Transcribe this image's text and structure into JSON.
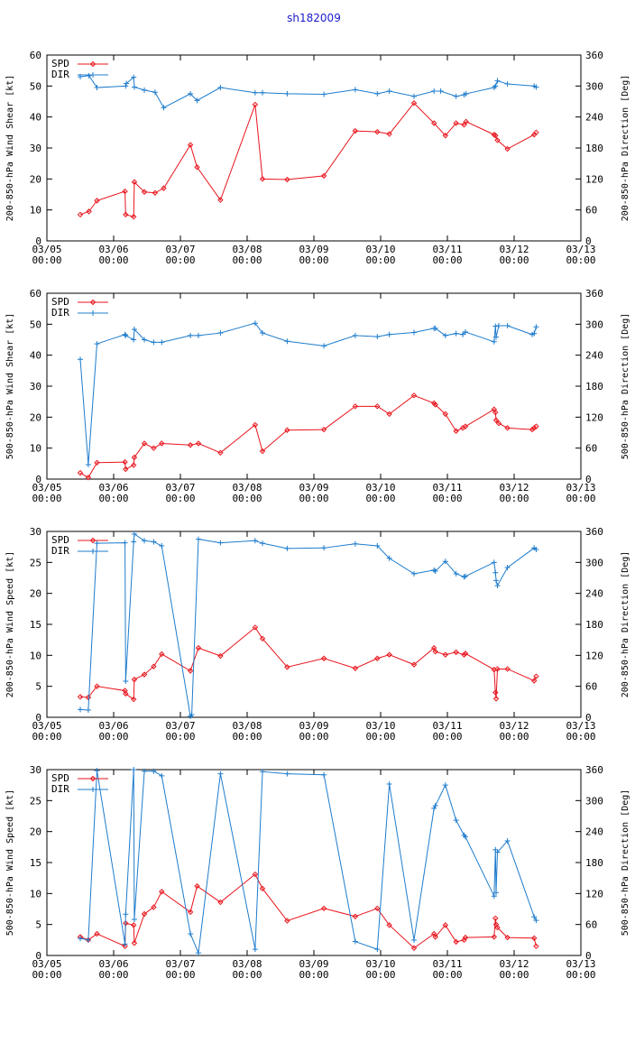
{
  "title": "sh182009",
  "colors": {
    "spd": "#e8141c",
    "dir": "#1e7ccc",
    "title": "#1a1acc",
    "axis": "#000000"
  },
  "x_ticks": [
    {
      "d": "03/05",
      "t": "00:00"
    },
    {
      "d": "03/06",
      "t": "00:00"
    },
    {
      "d": "03/07",
      "t": "00:00"
    },
    {
      "d": "03/08",
      "t": "00:00"
    },
    {
      "d": "03/09",
      "t": "00:00"
    },
    {
      "d": "03/10",
      "t": "00:00"
    },
    {
      "d": "03/11",
      "t": "00:00"
    },
    {
      "d": "03/12",
      "t": "00:00"
    },
    {
      "d": "03/13",
      "t": "00:00"
    }
  ],
  "chart_data": [
    {
      "type": "line",
      "ylabel": "200-850-hPa Wind Shear [kt]",
      "y2label": "200-850-hPa Direction [Deg]",
      "ylim": [
        0,
        60
      ],
      "yticks": [
        0,
        10,
        20,
        30,
        40,
        50,
        60
      ],
      "y2lim": [
        0,
        360
      ],
      "y2ticks": [
        0,
        60,
        120,
        180,
        240,
        300,
        360
      ],
      "xlim": [
        0,
        8
      ],
      "legend": [
        "SPD",
        "DIR"
      ],
      "series": [
        {
          "name": "SPD",
          "axis": "left",
          "x": [
            0.5,
            0.63,
            0.75,
            1.17,
            1.18,
            1.3,
            1.31,
            1.46,
            1.62,
            1.75,
            2.15,
            2.25,
            2.6,
            3.12,
            3.23,
            3.6,
            4.15,
            4.62,
            4.95,
            5.13,
            5.5,
            5.8,
            5.97,
            6.13,
            6.25,
            6.28,
            6.7,
            6.72,
            6.75,
            6.9,
            7.3,
            7.33
          ],
          "y": [
            8.5,
            9.5,
            13,
            16,
            8.5,
            7.8,
            19,
            15.8,
            15.5,
            17,
            31,
            23.8,
            13.2,
            44,
            20,
            19.8,
            21,
            35.5,
            35.2,
            34.5,
            44.5,
            38,
            34,
            38,
            37.5,
            38.5,
            34.3,
            34,
            32.5,
            29.7,
            34.3,
            35
          ]
        },
        {
          "name": "DIR",
          "axis": "right",
          "x": [
            0.5,
            0.63,
            0.75,
            1.18,
            1.19,
            1.3,
            1.31,
            1.46,
            1.62,
            1.75,
            2.15,
            2.25,
            2.6,
            3.12,
            3.23,
            3.6,
            4.15,
            4.62,
            4.95,
            5.13,
            5.5,
            5.8,
            5.9,
            6.13,
            6.25,
            6.28,
            6.7,
            6.72,
            6.75,
            6.9,
            7.3,
            7.33
          ],
          "y": [
            318,
            320,
            297,
            300,
            305,
            317,
            298,
            292,
            288,
            258,
            285,
            272,
            297,
            287,
            287,
            285,
            284,
            293,
            285,
            290,
            280,
            290,
            290,
            280,
            283,
            285,
            297,
            300,
            310,
            304,
            300,
            298
          ]
        }
      ]
    },
    {
      "type": "line",
      "ylabel": "500-850-hPa Wind Shear [kt]",
      "y2label": "500-850-hPa Direction [Deg]",
      "ylim": [
        0,
        60
      ],
      "yticks": [
        0,
        10,
        20,
        30,
        40,
        50,
        60
      ],
      "y2lim": [
        0,
        360
      ],
      "y2ticks": [
        0,
        60,
        120,
        180,
        240,
        300,
        360
      ],
      "xlim": [
        0,
        8
      ],
      "legend": [
        "SPD",
        "DIR"
      ],
      "series": [
        {
          "name": "SPD",
          "axis": "left",
          "x": [
            0.5,
            0.62,
            0.75,
            1.17,
            1.18,
            1.3,
            1.31,
            1.46,
            1.6,
            1.72,
            2.15,
            2.27,
            2.6,
            3.12,
            3.23,
            3.6,
            4.15,
            4.62,
            4.95,
            5.13,
            5.5,
            5.8,
            5.82,
            5.97,
            6.13,
            6.23,
            6.27,
            6.7,
            6.72,
            6.73,
            6.77,
            6.9,
            7.27,
            7.3,
            7.33
          ],
          "y": [
            2,
            0.5,
            5.3,
            5.5,
            3.2,
            4.5,
            7,
            11.5,
            10,
            11.5,
            11,
            11.5,
            8.5,
            17.5,
            9,
            15.8,
            16,
            23.5,
            23.5,
            21,
            27,
            24.5,
            24,
            21,
            15.5,
            16.5,
            17,
            22.5,
            21.5,
            19,
            18,
            16.5,
            16,
            16.5,
            17
          ]
        },
        {
          "name": "DIR",
          "axis": "right",
          "x": [
            0.5,
            0.62,
            0.75,
            1.17,
            1.18,
            1.3,
            1.31,
            1.46,
            1.6,
            1.72,
            2.15,
            2.27,
            2.6,
            3.12,
            3.23,
            3.6,
            4.15,
            4.62,
            4.95,
            5.13,
            5.5,
            5.8,
            5.82,
            5.97,
            6.13,
            6.23,
            6.27,
            6.7,
            6.72,
            6.73,
            6.77,
            6.9,
            7.27,
            7.3,
            7.33
          ],
          "y": [
            232,
            28,
            262,
            280,
            278,
            270,
            290,
            270,
            265,
            265,
            278,
            278,
            283,
            302,
            283,
            267,
            258,
            278,
            276,
            280,
            284,
            292,
            292,
            278,
            282,
            280,
            285,
            266,
            296,
            275,
            297,
            297,
            280,
            282,
            295
          ]
        }
      ]
    },
    {
      "type": "line",
      "ylabel": "200-850-hPa Wind Speed [kt]",
      "y2label": "200-850-hPa Direction [Deg]",
      "ylim": [
        0,
        30
      ],
      "yticks": [
        0,
        5,
        10,
        15,
        20,
        25,
        30
      ],
      "y2lim": [
        0,
        360
      ],
      "y2ticks": [
        0,
        60,
        120,
        180,
        240,
        300,
        360
      ],
      "xlim": [
        0,
        8
      ],
      "legend": [
        "SPD",
        "DIR"
      ],
      "series": [
        {
          "name": "SPD",
          "axis": "left",
          "x": [
            0.5,
            0.62,
            0.75,
            1.17,
            1.18,
            1.3,
            1.31,
            1.46,
            1.6,
            1.72,
            2.15,
            2.27,
            2.6,
            3.12,
            3.23,
            3.6,
            4.15,
            4.62,
            4.95,
            5.13,
            5.5,
            5.8,
            5.82,
            5.97,
            6.13,
            6.25,
            6.27,
            6.7,
            6.72,
            6.73,
            6.75,
            6.9,
            7.3,
            7.33
          ],
          "y": [
            3.3,
            3.2,
            5,
            4.3,
            3.8,
            2.9,
            6.1,
            6.9,
            8.2,
            10.2,
            7.5,
            11.2,
            9.9,
            14.5,
            12.7,
            8.1,
            9.5,
            7.9,
            9.5,
            10.1,
            8.5,
            11.2,
            10.6,
            10.1,
            10.5,
            10.1,
            10.3,
            7.7,
            4,
            3,
            7.8,
            7.8,
            5.9,
            6.6
          ]
        },
        {
          "name": "DIR",
          "axis": "right",
          "x": [
            0.5,
            0.62,
            0.75,
            1.17,
            1.18,
            1.3,
            1.31,
            1.46,
            1.6,
            1.72,
            2.15,
            2.17,
            2.27,
            2.6,
            3.12,
            3.23,
            3.6,
            4.15,
            4.62,
            4.95,
            5.13,
            5.5,
            5.8,
            5.82,
            5.97,
            6.13,
            6.25,
            6.27,
            6.7,
            6.72,
            6.73,
            6.75,
            6.9,
            7.3,
            7.33
          ],
          "y": [
            15,
            14,
            337,
            338,
            70,
            340,
            355,
            342,
            340,
            332,
            2,
            5,
            345,
            338,
            342,
            337,
            327,
            328,
            336,
            332,
            308,
            278,
            285,
            283,
            302,
            278,
            272,
            273,
            300,
            280,
            265,
            255,
            290,
            328,
            325
          ]
        }
      ]
    },
    {
      "type": "line",
      "ylabel": "500-850-hPa Wind Speed [kt]",
      "y2label": "500-850-hPa Direction [Deg]",
      "ylim": [
        0,
        30
      ],
      "yticks": [
        0,
        5,
        10,
        15,
        20,
        25,
        30
      ],
      "y2lim": [
        0,
        360
      ],
      "y2ticks": [
        0,
        60,
        120,
        180,
        240,
        300,
        360
      ],
      "xlim": [
        0,
        8
      ],
      "legend": [
        "SPD",
        "DIR"
      ],
      "series": [
        {
          "name": "SPD",
          "axis": "left",
          "x": [
            0.5,
            0.62,
            0.75,
            1.17,
            1.18,
            1.3,
            1.31,
            1.46,
            1.6,
            1.72,
            2.15,
            2.25,
            2.6,
            3.12,
            3.23,
            3.6,
            4.15,
            4.62,
            4.95,
            5.13,
            5.5,
            5.8,
            5.82,
            5.97,
            6.13,
            6.25,
            6.27,
            6.7,
            6.72,
            6.73,
            6.75,
            6.9,
            7.3,
            7.33
          ],
          "y": [
            3,
            2.5,
            3.5,
            1.5,
            5.2,
            4.9,
            2,
            6.7,
            7.8,
            10.3,
            7,
            11.2,
            8.6,
            13.1,
            10.8,
            5.6,
            7.6,
            6.3,
            7.6,
            4.9,
            1.2,
            3.5,
            3,
            4.9,
            2.2,
            2.5,
            2.9,
            3,
            6,
            5,
            4.5,
            2.9,
            2.8,
            1.5
          ]
        },
        {
          "name": "DIR",
          "axis": "right",
          "x": [
            0.5,
            0.62,
            0.75,
            1.17,
            1.18,
            1.3,
            1.31,
            1.46,
            1.6,
            1.72,
            2.15,
            2.27,
            2.6,
            3.12,
            3.23,
            3.6,
            4.15,
            4.62,
            4.95,
            5.13,
            5.5,
            5.8,
            5.82,
            5.97,
            6.13,
            6.25,
            6.27,
            6.7,
            6.72,
            6.73,
            6.75,
            6.9,
            7.3,
            7.33
          ],
          "y": [
            33,
            30,
            358,
            22,
            80,
            360,
            70,
            357,
            357,
            348,
            42,
            5,
            352,
            12,
            356,
            352,
            350,
            27,
            12,
            332,
            30,
            285,
            290,
            330,
            262,
            233,
            230,
            115,
            205,
            122,
            200,
            222,
            75,
            68
          ]
        }
      ]
    }
  ]
}
